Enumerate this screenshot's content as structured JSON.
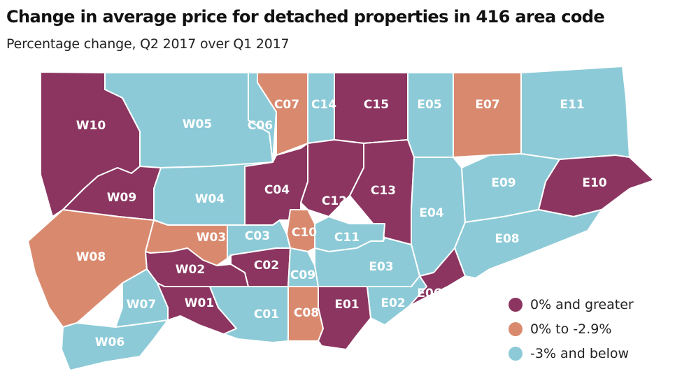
{
  "title": "Change in average price for detached properties in 416 area code",
  "subtitle": "Percentage change, Q2 2017 over Q1 2017",
  "colors": {
    "gain": "#8b3560",
    "small_drop": "#d98a6e",
    "large_drop": "#8ccad7"
  },
  "legend": [
    {
      "key": "gain",
      "label": "0% and greater"
    },
    {
      "key": "small_drop",
      "label": "0% to -2.9%"
    },
    {
      "key": "large_drop",
      "label": "-3% and below"
    }
  ],
  "districts": [
    {
      "code": "W10",
      "category": "gain"
    },
    {
      "code": "W05",
      "category": "large_drop"
    },
    {
      "code": "C06",
      "category": "large_drop"
    },
    {
      "code": "C07",
      "category": "small_drop"
    },
    {
      "code": "C14",
      "category": "large_drop"
    },
    {
      "code": "C15",
      "category": "gain"
    },
    {
      "code": "E05",
      "category": "large_drop"
    },
    {
      "code": "E07",
      "category": "small_drop"
    },
    {
      "code": "E11",
      "category": "large_drop"
    },
    {
      "code": "W09",
      "category": "gain"
    },
    {
      "code": "W04",
      "category": "large_drop"
    },
    {
      "code": "C04",
      "category": "gain"
    },
    {
      "code": "C12",
      "category": "gain"
    },
    {
      "code": "C13",
      "category": "gain"
    },
    {
      "code": "E04",
      "category": "large_drop"
    },
    {
      "code": "E09",
      "category": "large_drop"
    },
    {
      "code": "E10",
      "category": "gain"
    },
    {
      "code": "W08",
      "category": "small_drop"
    },
    {
      "code": "W03",
      "category": "small_drop"
    },
    {
      "code": "C03",
      "category": "large_drop"
    },
    {
      "code": "C10",
      "category": "small_drop"
    },
    {
      "code": "C11",
      "category": "large_drop"
    },
    {
      "code": "E08",
      "category": "large_drop"
    },
    {
      "code": "W02",
      "category": "gain"
    },
    {
      "code": "C02",
      "category": "gain"
    },
    {
      "code": "C09",
      "category": "large_drop"
    },
    {
      "code": "E03",
      "category": "large_drop"
    },
    {
      "code": "W07",
      "category": "large_drop"
    },
    {
      "code": "W01",
      "category": "gain"
    },
    {
      "code": "C01",
      "category": "large_drop"
    },
    {
      "code": "C08",
      "category": "small_drop"
    },
    {
      "code": "E01",
      "category": "gain"
    },
    {
      "code": "E02",
      "category": "large_drop"
    },
    {
      "code": "E06",
      "category": "gain"
    },
    {
      "code": "W06",
      "category": "large_drop"
    }
  ]
}
